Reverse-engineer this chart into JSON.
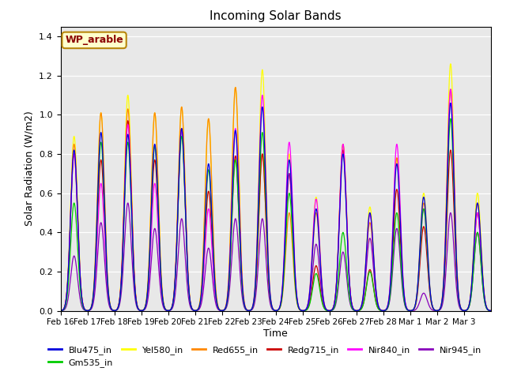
{
  "title": "Incoming Solar Bands",
  "xlabel": "Time",
  "ylabel": "Solar Radiation (W/m2)",
  "annotation": "WP_arable",
  "ylim": [
    0,
    1.45
  ],
  "background_color": "#e8e8e8",
  "legend_entries": [
    "Blu475_in",
    "Gm535_in",
    "Yel580_in",
    "Red655_in",
    "Redg715_in",
    "Nir840_in",
    "Nir945_in"
  ],
  "line_colors": [
    "#0000dd",
    "#00cc00",
    "#ffff00",
    "#ff8800",
    "#cc0000",
    "#ff00ff",
    "#8800bb"
  ],
  "xtick_labels": [
    "Feb 16",
    "Feb 17",
    "Feb 18",
    "Feb 19",
    "Feb 20",
    "Feb 21",
    "Feb 22",
    "Feb 23",
    "Feb 24",
    "Feb 25",
    "Feb 26",
    "Feb 27",
    "Feb 28",
    "Mar 1",
    "Mar 2",
    "Mar 3"
  ],
  "num_days": 16,
  "points_per_day": 144,
  "sigma": 0.13,
  "day_peaks": {
    "Yel580_in": [
      0.89,
      1.01,
      1.1,
      1.01,
      1.04,
      0.98,
      1.14,
      1.23,
      0.8,
      0.58,
      0.85,
      0.53,
      0.78,
      0.6,
      1.26,
      0.6
    ],
    "Blu475_in": [
      0.82,
      0.91,
      0.9,
      0.85,
      0.93,
      0.75,
      0.92,
      1.04,
      0.77,
      0.52,
      0.8,
      0.5,
      0.75,
      0.58,
      1.06,
      0.55
    ],
    "Gm535_in": [
      0.55,
      0.86,
      0.86,
      0.84,
      0.89,
      0.72,
      0.77,
      0.91,
      0.6,
      0.19,
      0.4,
      0.2,
      0.5,
      0.52,
      0.98,
      0.4
    ],
    "Red655_in": [
      0.85,
      1.01,
      1.03,
      1.01,
      1.04,
      0.98,
      1.14,
      0.8,
      0.5,
      0.5,
      0.85,
      0.45,
      0.78,
      0.55,
      1.13,
      0.55
    ],
    "Redg715_in": [
      0.8,
      0.77,
      0.97,
      0.77,
      0.93,
      0.61,
      0.79,
      0.8,
      0.7,
      0.23,
      0.82,
      0.21,
      0.62,
      0.43,
      0.82,
      0.5
    ],
    "Nir840_in": [
      0.8,
      0.65,
      0.95,
      0.65,
      0.92,
      0.52,
      0.93,
      1.1,
      0.86,
      0.57,
      0.85,
      0.49,
      0.85,
      0.52,
      1.13,
      0.5
    ],
    "Nir945_in": [
      0.28,
      0.45,
      0.55,
      0.42,
      0.47,
      0.32,
      0.47,
      0.47,
      0.7,
      0.34,
      0.3,
      0.37,
      0.42,
      0.09,
      0.5,
      0.4
    ]
  }
}
